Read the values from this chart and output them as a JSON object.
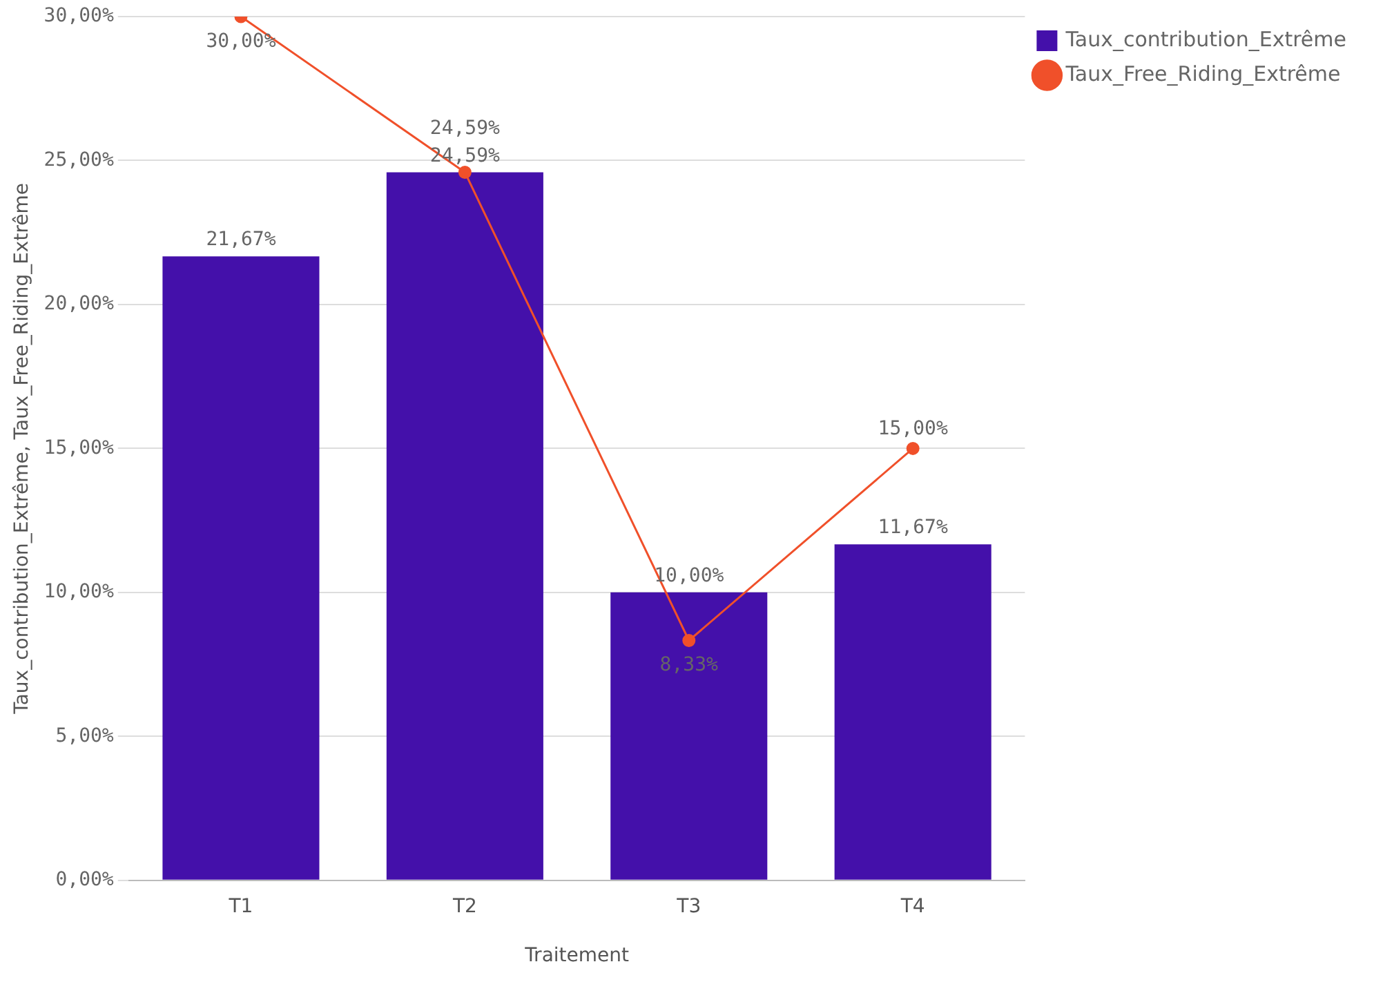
{
  "chart_data": {
    "type": "bar",
    "xlabel": "Traitement",
    "ylabel": "Taux_contribution_Extrême, Taux_Free_Riding_Extrême",
    "categories": [
      "T1",
      "T2",
      "T3",
      "T4"
    ],
    "series": [
      {
        "name": "Taux_contribution_Extrême",
        "color": "#4410aa",
        "values": [
          21.67,
          24.59,
          10.0,
          11.67
        ],
        "value_labels": [
          "21,67%",
          "24,59%",
          "10,00%",
          "11,67%"
        ]
      },
      {
        "name": "Taux_Free_Riding_Extrême",
        "type": "line",
        "color": "#f0502a",
        "values": [
          30.0,
          24.59,
          8.33,
          15.0
        ],
        "value_labels": [
          "30,00%",
          "24,59%",
          "8,33%",
          "15,00%"
        ]
      }
    ],
    "ylim": [
      0,
      30
    ],
    "yticks": [
      {
        "value": 0,
        "label": "0,00%"
      },
      {
        "value": 5,
        "label": "5,00%"
      },
      {
        "value": 10,
        "label": "10,00%"
      },
      {
        "value": 15,
        "label": "15,00%"
      },
      {
        "value": 20,
        "label": "20,00%"
      },
      {
        "value": 25,
        "label": "25,00%"
      },
      {
        "value": 30,
        "label": "30,00%"
      }
    ],
    "grid": "y",
    "legend": "top right",
    "marker": "circle",
    "line_style": "solid"
  }
}
